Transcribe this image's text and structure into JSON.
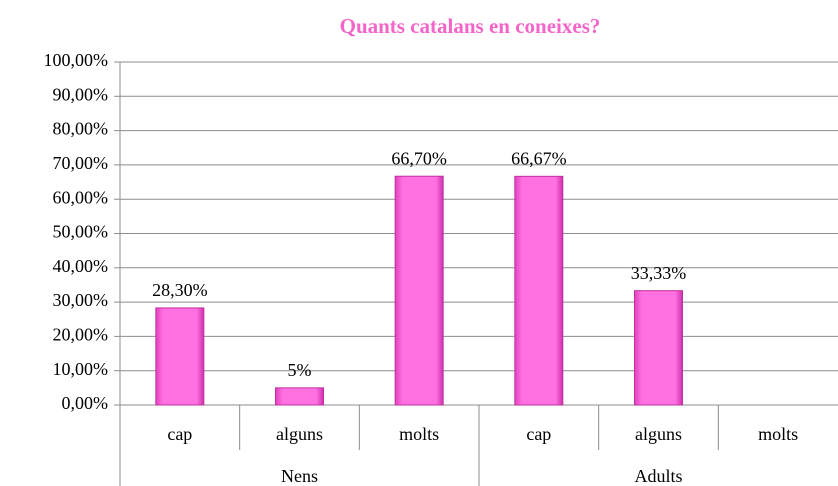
{
  "chart_data": {
    "type": "bar",
    "title": "Quants catalans en coneixes?",
    "categories": [
      "cap",
      "alguns",
      "molts",
      "cap",
      "alguns",
      "molts"
    ],
    "groups": [
      "Nens",
      "Adults"
    ],
    "values": [
      28.3,
      5,
      66.7,
      66.67,
      33.33,
      null
    ],
    "value_labels": [
      "28,30%",
      "5%",
      "66,70%",
      "66,67%",
      "33,33%",
      null
    ],
    "color": "#ff66dd",
    "ylim": [
      0,
      100
    ],
    "yticks": [
      {
        "value": 0,
        "label": "0,00%"
      },
      {
        "value": 10,
        "label": "10,00%"
      },
      {
        "value": 20,
        "label": "20,00%"
      },
      {
        "value": 30,
        "label": "30,00%"
      },
      {
        "value": 40,
        "label": "40,00%"
      },
      {
        "value": 50,
        "label": "50,00%"
      },
      {
        "value": 60,
        "label": "60,00%"
      },
      {
        "value": 70,
        "label": "70,00%"
      },
      {
        "value": 80,
        "label": "80,00%"
      },
      {
        "value": 90,
        "label": "90,00%"
      },
      {
        "value": 100,
        "label": "100,00%"
      }
    ],
    "grid": true
  }
}
